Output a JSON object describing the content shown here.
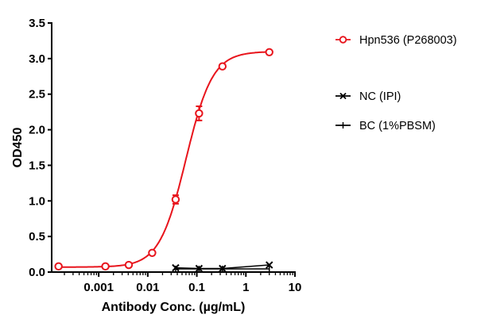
{
  "chart_data": {
    "type": "scatter",
    "xlabel": "Antibody Conc. (µg/mL)",
    "ylabel": "OD450",
    "xscale": "log",
    "xlim": [
      0.00011,
      10
    ],
    "ylim": [
      0,
      3.5
    ],
    "xticks": [
      0.001,
      0.01,
      0.1,
      1,
      10
    ],
    "xtick_labels": [
      "0.001",
      "0.01",
      "0.1",
      "1",
      "10"
    ],
    "yticks": [
      0,
      0.5,
      1,
      1.5,
      2,
      2.5,
      3,
      3.5
    ],
    "ytick_labels": [
      "0.0",
      "0.5",
      "1.0",
      "1.5",
      "2.0",
      "2.5",
      "3.0",
      "3.5"
    ],
    "grid": false,
    "legend_position": "right",
    "series": [
      {
        "name": "Hpn536 (P268003)",
        "color": "#e8141c",
        "marker": "circle",
        "fit": "sigmoidal curve",
        "x": [
          0.000152,
          0.00137,
          0.0041,
          0.0123,
          0.037,
          0.111,
          0.333,
          3
        ],
        "y": [
          0.08,
          0.08,
          0.1,
          0.27,
          1.02,
          2.23,
          2.89,
          3.09
        ],
        "error": [
          0,
          0,
          0,
          0,
          0.06,
          0.1,
          0,
          0
        ]
      },
      {
        "name": "NC (IPI)",
        "color": "#000000",
        "marker": "x",
        "x": [
          0.037,
          0.111,
          0.333,
          3
        ],
        "y": [
          0.06,
          0.05,
          0.05,
          0.1
        ]
      },
      {
        "name": "BC (1%PBSM)",
        "color": "#000000",
        "marker": "plus",
        "x": [
          0.037,
          0.111,
          0.333,
          3
        ],
        "y": [
          0.045,
          0.045,
          0.045,
          0.045
        ]
      }
    ]
  }
}
